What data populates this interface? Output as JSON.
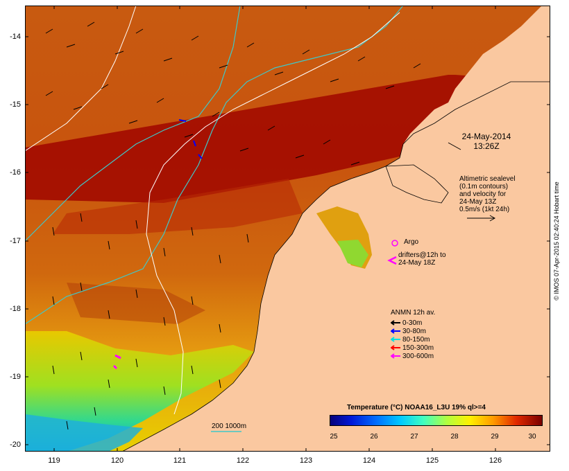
{
  "map": {
    "y_axis_labels": [
      "-14",
      "-15",
      "-16",
      "-17",
      "-18",
      "-19",
      "-20"
    ],
    "x_axis_labels": [
      "119",
      "120",
      "121",
      "122",
      "123",
      "124",
      "125",
      "126"
    ],
    "colors": {
      "land": "#fac8a0",
      "sst_warm": "#a30c00",
      "sst_mid": "#d86a0e",
      "sst_cool": "#e8d000",
      "sst_cold": "#00a0e0",
      "contour_200m": "#40c8c8",
      "contour_1000m": "#ffffff"
    }
  },
  "annotations": {
    "timestamp_date": "24-May-2014",
    "timestamp_time": "13:26Z",
    "altimetry_lines": [
      "Altimetric sealevel",
      "(0.1m contours)",
      "and velocity for",
      "24-May 13Z",
      "0.5m/s (1kt 24h)"
    ],
    "argo_label": "Argo",
    "drifter_lines": [
      "drifters@12h to",
      "24-May 18Z"
    ]
  },
  "anmn_legend": {
    "title": "ANMN 12h av.",
    "items": [
      {
        "label": "0-30m",
        "color": "#000000"
      },
      {
        "label": "30-80m",
        "color": "#0000ff"
      },
      {
        "label": "80-150m",
        "color": "#00e0e0"
      },
      {
        "label": "150-300m",
        "color": "#ff0000"
      },
      {
        "label": "300-600m",
        "color": "#ff00ff"
      }
    ]
  },
  "scale": {
    "label": "200  1000m"
  },
  "colorbar": {
    "title": "Temperature (°C) NOAA16_L3U 19% ql>=4",
    "ticks": [
      "25",
      "26",
      "27",
      "28",
      "29",
      "30"
    ]
  },
  "credit": "© IMOS 07-Apr-2015 02:40:24 Hobart time"
}
